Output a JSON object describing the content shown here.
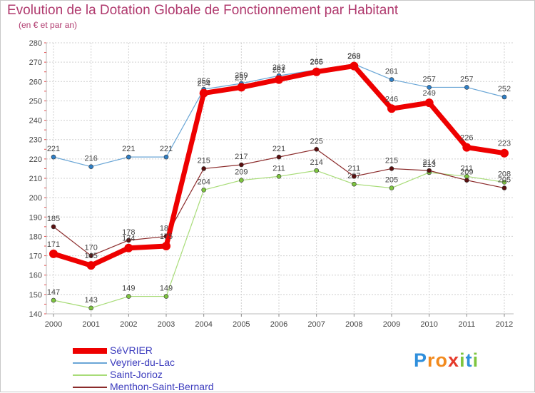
{
  "title": "Evolution de la Dotation Globale de Fonctionnement par Habitant",
  "subtitle": "(en € et par an)",
  "logo": {
    "letters": [
      "P",
      "r",
      "o",
      "x",
      "i",
      "t",
      "i"
    ],
    "colors": [
      "#2f8fdc",
      "#f28a1e",
      "#f28a1e",
      "#e53b2c",
      "#7ec53f",
      "#2f8fdc",
      "#7ec53f"
    ]
  },
  "chart_data": {
    "type": "line",
    "title": "Evolution de la Dotation Globale de Fonctionnement par Habitant",
    "ylabel": "(en € et par an)",
    "xlabel": "",
    "ylim": [
      140,
      280
    ],
    "yticks": [
      140,
      150,
      160,
      170,
      180,
      190,
      200,
      210,
      220,
      230,
      240,
      250,
      260,
      270,
      280
    ],
    "categories": [
      "2000",
      "2001",
      "2002",
      "2003",
      "2004",
      "2005",
      "2006",
      "2007",
      "2008",
      "2009",
      "2010",
      "2011",
      "2012"
    ],
    "grid": true,
    "series": [
      {
        "name": "Veyrier-du-Lac",
        "color": "#6aa6d6",
        "marker": "#2e7fc7",
        "width": 1.2,
        "radius": 3,
        "values": [
          221,
          216,
          221,
          221,
          256,
          259,
          263,
          266,
          269,
          261,
          257,
          257,
          252
        ],
        "labels": [
          "221",
          "216",
          "221",
          "221",
          "256",
          "259",
          "263",
          "266",
          "269",
          "261",
          "257",
          "257",
          "252"
        ]
      },
      {
        "name": "Saint-Jorioz",
        "color": "#a8dc78",
        "marker": "#7ec53f",
        "width": 1.2,
        "radius": 3,
        "values": [
          147,
          143,
          149,
          149,
          204,
          209,
          211,
          214,
          207,
          205,
          213,
          211,
          208
        ],
        "labels": [
          "147",
          "143",
          "149",
          "149",
          "204",
          "209",
          "211",
          "214",
          "207",
          "205",
          "213",
          "211",
          "208"
        ]
      },
      {
        "name": "Menthon-Saint-Bernard",
        "color": "#8b2b2b",
        "marker": "#5a0f0f",
        "width": 1.2,
        "radius": 3,
        "values": [
          185,
          170,
          178,
          180,
          215,
          217,
          221,
          225,
          211,
          215,
          214,
          209,
          205
        ],
        "labels": [
          "185",
          "170",
          "178",
          "180",
          "215",
          "217",
          "221",
          "225",
          "211",
          "215",
          "214",
          "209",
          "205"
        ]
      },
      {
        "name": "SéVRIER",
        "color": "#ee0000",
        "marker": "#ee0000",
        "width": 7,
        "radius": 6,
        "values": [
          171,
          165,
          174,
          175,
          254,
          257,
          261,
          265,
          268,
          246,
          249,
          226,
          223
        ],
        "labels": [
          "171",
          "165",
          "174",
          "175",
          "254",
          "257",
          "261",
          "265",
          "268",
          "246",
          "249",
          "226",
          "223"
        ]
      }
    ],
    "legend": [
      "SéVRIER",
      "Veyrier-du-Lac",
      "Saint-Jorioz",
      "Menthon-Saint-Bernard"
    ]
  }
}
